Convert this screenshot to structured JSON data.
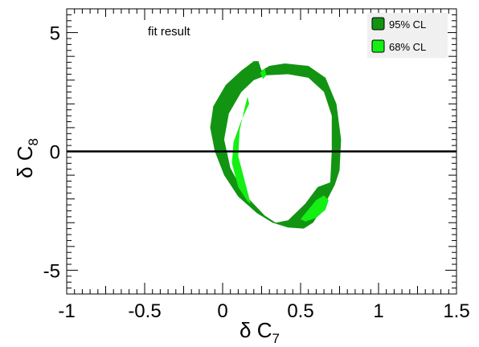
{
  "chart_data": {
    "type": "contour",
    "annotation": "fit result",
    "xlabel": {
      "symbol": "δ C",
      "subscript": "7"
    },
    "ylabel": {
      "symbol": "δ C",
      "subscript": "8"
    },
    "xlim": [
      -1.0,
      1.5
    ],
    "ylim": [
      -6.0,
      6.0
    ],
    "x_ticks": [
      -1,
      -0.5,
      0,
      0.5,
      1,
      1.5
    ],
    "x_tick_labels": [
      "-1",
      "-0.5",
      "0",
      "0.5",
      "1",
      "1.5"
    ],
    "y_ticks": [
      -5,
      0,
      5
    ],
    "y_tick_labels": [
      "-5",
      "0",
      "5"
    ],
    "reference_line_y": 0,
    "legend": {
      "placement": "top-right",
      "entries": [
        {
          "label": "95% CL",
          "color": "#129412"
        },
        {
          "label": "68% CL",
          "color": "#14ef14"
        }
      ]
    },
    "regions": [
      {
        "name": "95% CL",
        "color": "#129412",
        "outer": [
          [
            0.23,
            3.8
          ],
          [
            0.25,
            3.4
          ],
          [
            0.3,
            3.6
          ],
          [
            0.4,
            3.7
          ],
          [
            0.55,
            3.6
          ],
          [
            0.66,
            3.1
          ],
          [
            0.73,
            2.0
          ],
          [
            0.76,
            0.5
          ],
          [
            0.75,
            -0.8
          ],
          [
            0.72,
            -1.4
          ],
          [
            0.65,
            -2.3
          ],
          [
            0.58,
            -3.0
          ],
          [
            0.52,
            -3.25
          ],
          [
            0.42,
            -3.2
          ],
          [
            0.32,
            -3.0
          ],
          [
            0.22,
            -2.6
          ],
          [
            0.1,
            -1.9
          ],
          [
            0.01,
            -1.0
          ],
          [
            -0.05,
            0.0
          ],
          [
            -0.08,
            1.0
          ],
          [
            -0.06,
            1.9
          ],
          [
            0.02,
            2.8
          ],
          [
            0.12,
            3.4
          ],
          [
            0.2,
            3.8
          ]
        ],
        "hole": [
          [
            0.28,
            3.2
          ],
          [
            0.42,
            3.25
          ],
          [
            0.55,
            3.1
          ],
          [
            0.65,
            2.5
          ],
          [
            0.7,
            1.5
          ],
          [
            0.7,
            0.0
          ],
          [
            0.69,
            -1.3
          ],
          [
            0.61,
            -1.5
          ],
          [
            0.53,
            -2.2
          ],
          [
            0.42,
            -2.9
          ],
          [
            0.34,
            -3.0
          ],
          [
            0.27,
            -2.7
          ],
          [
            0.14,
            -1.8
          ],
          [
            0.05,
            -0.7
          ],
          [
            0.01,
            0.5
          ],
          [
            0.04,
            1.6
          ],
          [
            0.12,
            2.5
          ],
          [
            0.2,
            3.0
          ]
        ]
      },
      {
        "name": "68% CL",
        "color": "#14ef14",
        "patches": [
          [
            [
              0.16,
              2.3
            ],
            [
              0.17,
              2.0
            ],
            [
              0.12,
              1.3
            ],
            [
              0.07,
              0.4
            ],
            [
              0.06,
              -0.5
            ],
            [
              0.1,
              -1.5
            ],
            [
              0.16,
              -2.1
            ],
            [
              0.18,
              -2.2
            ],
            [
              0.14,
              -1.2
            ],
            [
              0.1,
              -0.2
            ],
            [
              0.11,
              0.9
            ],
            [
              0.14,
              1.8
            ]
          ],
          [
            [
              0.53,
              -2.95
            ],
            [
              0.6,
              -2.8
            ],
            [
              0.66,
              -2.45
            ],
            [
              0.68,
              -2.05
            ],
            [
              0.65,
              -1.85
            ],
            [
              0.6,
              -2.05
            ],
            [
              0.55,
              -2.45
            ],
            [
              0.5,
              -2.85
            ]
          ],
          [
            [
              0.27,
              3.5
            ],
            [
              0.28,
              3.2
            ],
            [
              0.26,
              3.05
            ],
            [
              0.24,
              3.3
            ]
          ]
        ]
      }
    ]
  }
}
